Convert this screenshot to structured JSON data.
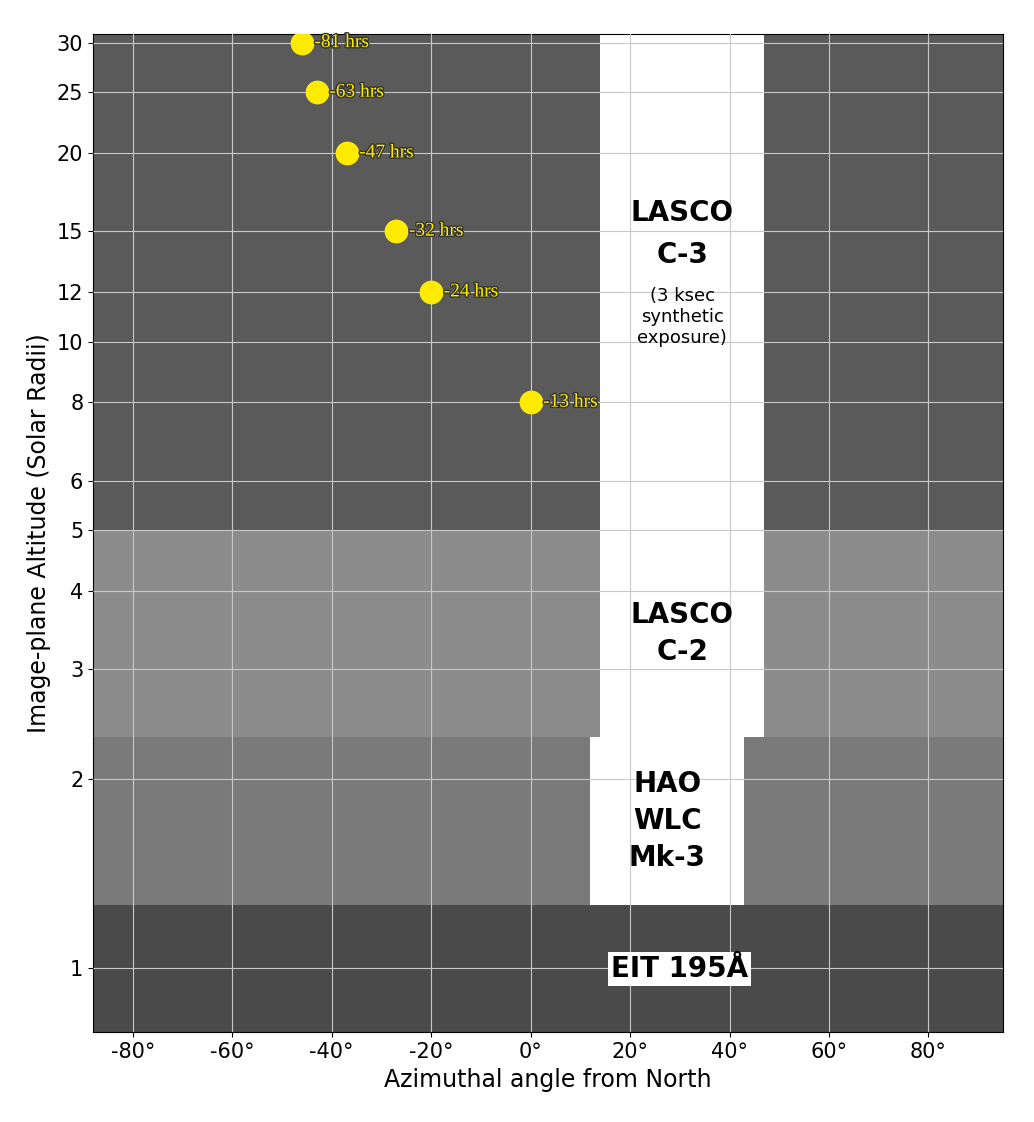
{
  "chart_data": {
    "type": "scatter",
    "x_label": "Azimuthal angle from North",
    "y_label": "Image-plane Altitude (Solar Radii)",
    "log": "y",
    "grid": true,
    "xlim": [
      -88,
      95
    ],
    "ylim": [
      0.79,
      31
    ],
    "xticks": [
      {
        "value": -80,
        "label": "-80°"
      },
      {
        "value": -60,
        "label": "-60°"
      },
      {
        "value": -40,
        "label": "-40°"
      },
      {
        "value": -20,
        "label": "-20°"
      },
      {
        "value": 0,
        "label": "0°"
      },
      {
        "value": 20,
        "label": "20°"
      },
      {
        "value": 40,
        "label": "40°"
      },
      {
        "value": 60,
        "label": "60°"
      },
      {
        "value": 80,
        "label": "80°"
      }
    ],
    "yticks": [
      1,
      2,
      3,
      4,
      5,
      6,
      8,
      10,
      12,
      15,
      20,
      25,
      30
    ],
    "color": "#ffeb00",
    "marker": "circle",
    "x": [
      -46,
      -43,
      -37,
      -27,
      -20,
      0
    ],
    "values": [
      30,
      25,
      20,
      15,
      12,
      8
    ],
    "annotations": [
      "-81 hrs",
      "-63 hrs",
      "-47 hrs",
      "-32 hrs",
      "-24 hrs",
      "-13 hrs"
    ],
    "panels": [
      {
        "label": "LASCO\nC-3",
        "note": "(3 ksec\nsynthetic\nexposure)",
        "x_ranges": [
          [
            -88,
            14
          ],
          [
            47,
            95
          ]
        ],
        "alt_range": [
          5,
          31
        ]
      },
      {
        "label": "LASCO\nC-2",
        "x_ranges": [
          [
            -88,
            14
          ],
          [
            47,
            95
          ]
        ],
        "alt_range": [
          2.34,
          5
        ]
      },
      {
        "label": "HAO\nWLC\nMk-3",
        "x_ranges": [
          [
            -88,
            12
          ],
          [
            43,
            95
          ]
        ],
        "alt_range": [
          1.26,
          2.34
        ]
      },
      {
        "label": "EIT 195Å",
        "x_ranges": [
          [
            -88,
            95
          ]
        ],
        "alt_range": [
          0.79,
          1.26
        ]
      }
    ]
  }
}
